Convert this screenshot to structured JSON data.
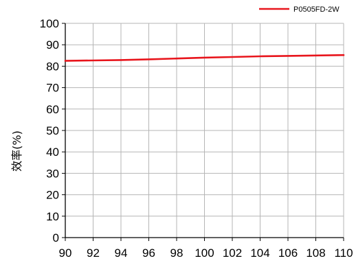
{
  "chart_data": {
    "type": "line",
    "title": "",
    "xlabel": "",
    "ylabel": "效率(%)",
    "xlim": [
      90,
      110
    ],
    "ylim": [
      0,
      100
    ],
    "x_ticks": [
      "90",
      "92",
      "94",
      "96",
      "98",
      "100",
      "102",
      "104",
      "106",
      "108",
      "110"
    ],
    "y_ticks": [
      "0",
      "10",
      "20",
      "30",
      "40",
      "50",
      "60",
      "70",
      "80",
      "90",
      "100"
    ],
    "grid": true,
    "legend_position": "top-right",
    "series": [
      {
        "name": "P0505FD-2W",
        "color": "#e8141b",
        "x": [
          90,
          92,
          94,
          96,
          98,
          100,
          102,
          104,
          106,
          108,
          110
        ],
        "y": [
          82.5,
          82.7,
          82.9,
          83.2,
          83.6,
          84.0,
          84.3,
          84.6,
          84.8,
          85.0,
          85.2
        ]
      }
    ]
  }
}
